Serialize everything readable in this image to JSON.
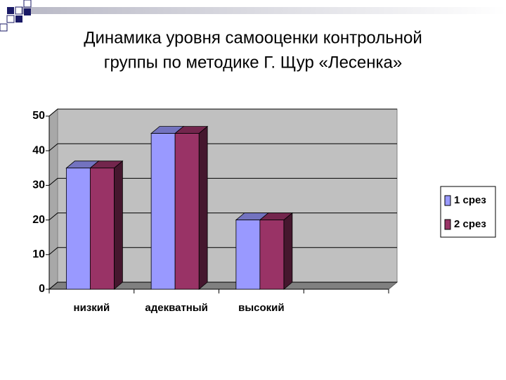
{
  "chart_data": {
    "type": "bar",
    "title": [
      "Динамика уровня самооценки контрольной",
      "группы по методике Г. Щур «Лесенка»"
    ],
    "categories": [
      "низкий",
      "адекватный",
      "высокий",
      null
    ],
    "series": [
      {
        "name": "1 срез",
        "color": "#9999ff",
        "values": [
          35,
          45,
          20,
          null
        ]
      },
      {
        "name": "2 срез",
        "color": "#993366",
        "values": [
          35,
          45,
          20,
          null
        ]
      }
    ],
    "ylim": [
      0,
      50
    ],
    "yticks": [
      0,
      10,
      20,
      30,
      40,
      50
    ],
    "grid": true,
    "legend": "right"
  }
}
